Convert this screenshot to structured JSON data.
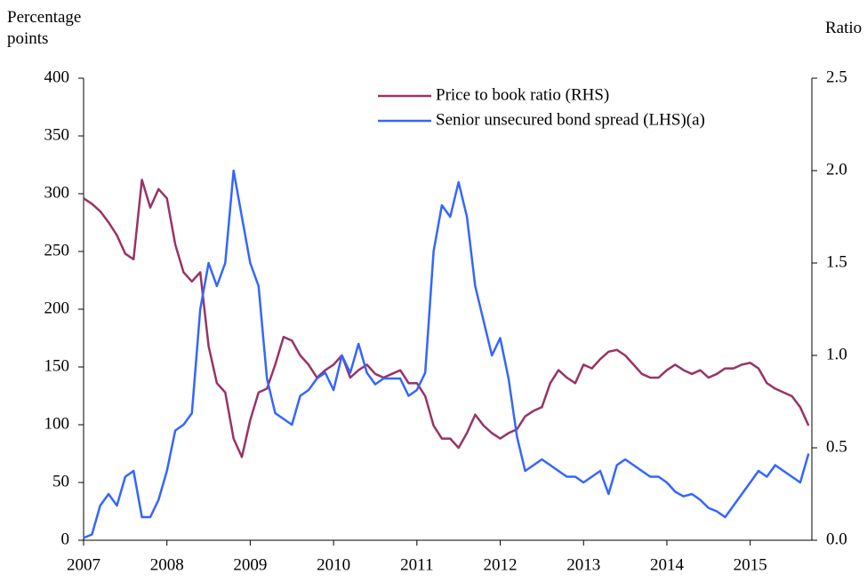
{
  "chart_data": {
    "type": "line",
    "y_label": "Percentage points",
    "y2_label": "Ratio",
    "x": [
      2007.0,
      2007.1,
      2007.2,
      2007.3,
      2007.4,
      2007.5,
      2007.6,
      2007.7,
      2007.8,
      2007.9,
      2008.0,
      2008.1,
      2008.2,
      2008.3,
      2008.4,
      2008.5,
      2008.6,
      2008.7,
      2008.8,
      2008.9,
      2009.0,
      2009.1,
      2009.2,
      2009.3,
      2009.4,
      2009.5,
      2009.6,
      2009.7,
      2009.8,
      2009.9,
      2010.0,
      2010.1,
      2010.2,
      2010.3,
      2010.4,
      2010.5,
      2010.6,
      2010.7,
      2010.8,
      2010.9,
      2011.0,
      2011.1,
      2011.2,
      2011.3,
      2011.4,
      2011.5,
      2011.6,
      2011.7,
      2011.8,
      2011.9,
      2012.0,
      2012.1,
      2012.2,
      2012.3,
      2012.4,
      2012.5,
      2012.6,
      2012.7,
      2012.8,
      2012.9,
      2013.0,
      2013.1,
      2013.2,
      2013.3,
      2013.4,
      2013.5,
      2013.6,
      2013.7,
      2013.8,
      2013.9,
      2014.0,
      2014.1,
      2014.2,
      2014.3,
      2014.4,
      2014.5,
      2014.6,
      2014.7,
      2014.8,
      2014.9,
      2015.0,
      2015.1,
      2015.2,
      2015.3,
      2015.4,
      2015.5,
      2015.6,
      2015.7
    ],
    "series": [
      {
        "name": "Price to book ratio (RHS)",
        "color": "#993366",
        "axis": "y2",
        "values": [
          1.85,
          1.82,
          1.78,
          1.72,
          1.65,
          1.55,
          1.52,
          1.95,
          1.8,
          1.9,
          1.85,
          1.6,
          1.45,
          1.4,
          1.45,
          1.05,
          0.85,
          0.8,
          0.55,
          0.45,
          0.65,
          0.8,
          0.82,
          0.95,
          1.1,
          1.08,
          1.0,
          0.95,
          0.88,
          0.92,
          0.95,
          1.0,
          0.88,
          0.92,
          0.95,
          0.9,
          0.88,
          0.9,
          0.92,
          0.85,
          0.85,
          0.78,
          0.62,
          0.55,
          0.55,
          0.5,
          0.58,
          0.68,
          0.62,
          0.58,
          0.55,
          0.58,
          0.6,
          0.67,
          0.7,
          0.72,
          0.85,
          0.92,
          0.88,
          0.85,
          0.95,
          0.93,
          0.98,
          1.02,
          1.03,
          1.0,
          0.95,
          0.9,
          0.88,
          0.88,
          0.92,
          0.95,
          0.92,
          0.9,
          0.92,
          0.88,
          0.9,
          0.93,
          0.93,
          0.95,
          0.96,
          0.93,
          0.85,
          0.82,
          0.8,
          0.78,
          0.72,
          0.62
        ]
      },
      {
        "name": "Senior unsecured bond spread (LHS)(a)",
        "color": "#3366ff",
        "values": [
          2,
          5,
          30,
          40,
          30,
          55,
          60,
          20,
          20,
          35,
          60,
          95,
          100,
          110,
          200,
          240,
          220,
          240,
          320,
          280,
          240,
          220,
          140,
          110,
          105,
          100,
          125,
          130,
          140,
          145,
          130,
          160,
          145,
          170,
          145,
          135,
          140,
          140,
          140,
          125,
          130,
          145,
          250,
          290,
          280,
          310,
          280,
          220,
          190,
          160,
          175,
          140,
          90,
          60,
          65,
          70,
          65,
          60,
          55,
          55,
          50,
          55,
          60,
          40,
          65,
          70,
          65,
          60,
          55,
          55,
          50,
          42,
          38,
          40,
          35,
          28,
          25,
          20,
          30,
          40,
          50,
          60,
          55,
          65,
          60,
          55,
          50,
          75
        ]
      }
    ],
    "xlim": [
      2007,
      2015.74
    ],
    "xticks": [
      2007,
      2008,
      2009,
      2010,
      2011,
      2012,
      2013,
      2014,
      2015
    ],
    "ylim": [
      0,
      400
    ],
    "yticks": [
      0,
      50,
      100,
      150,
      200,
      250,
      300,
      350,
      400
    ],
    "y2lim": [
      0,
      2.5
    ],
    "y2ticks": [
      {
        "value": 0,
        "label": "0.0"
      },
      0.5,
      {
        "value": 1,
        "label": "1.0"
      },
      1.5,
      {
        "value": 2,
        "label": "2.0"
      },
      2.5
    ]
  }
}
